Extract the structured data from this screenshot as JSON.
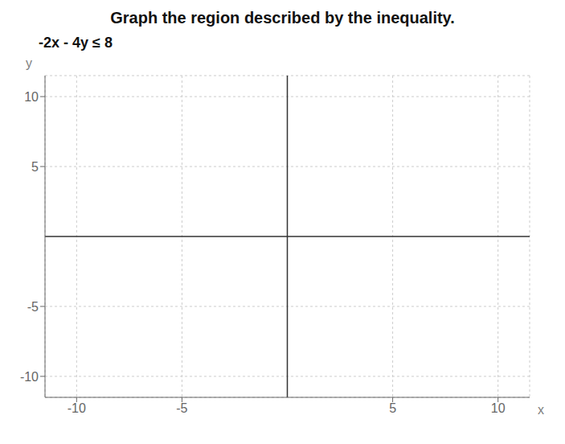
{
  "chart_data": {
    "type": "scatter",
    "title": "Graph the region described by the inequality.",
    "subtitle": "-2x - 4y ≤ 8",
    "xlabel": "x",
    "ylabel": "y",
    "xlim": [
      -11.5,
      11.5
    ],
    "ylim": [
      -11.5,
      11.5
    ],
    "xticks": [
      -10,
      -5,
      5,
      10
    ],
    "yticks": [
      -10,
      -5,
      5,
      10
    ],
    "grid": true
  }
}
